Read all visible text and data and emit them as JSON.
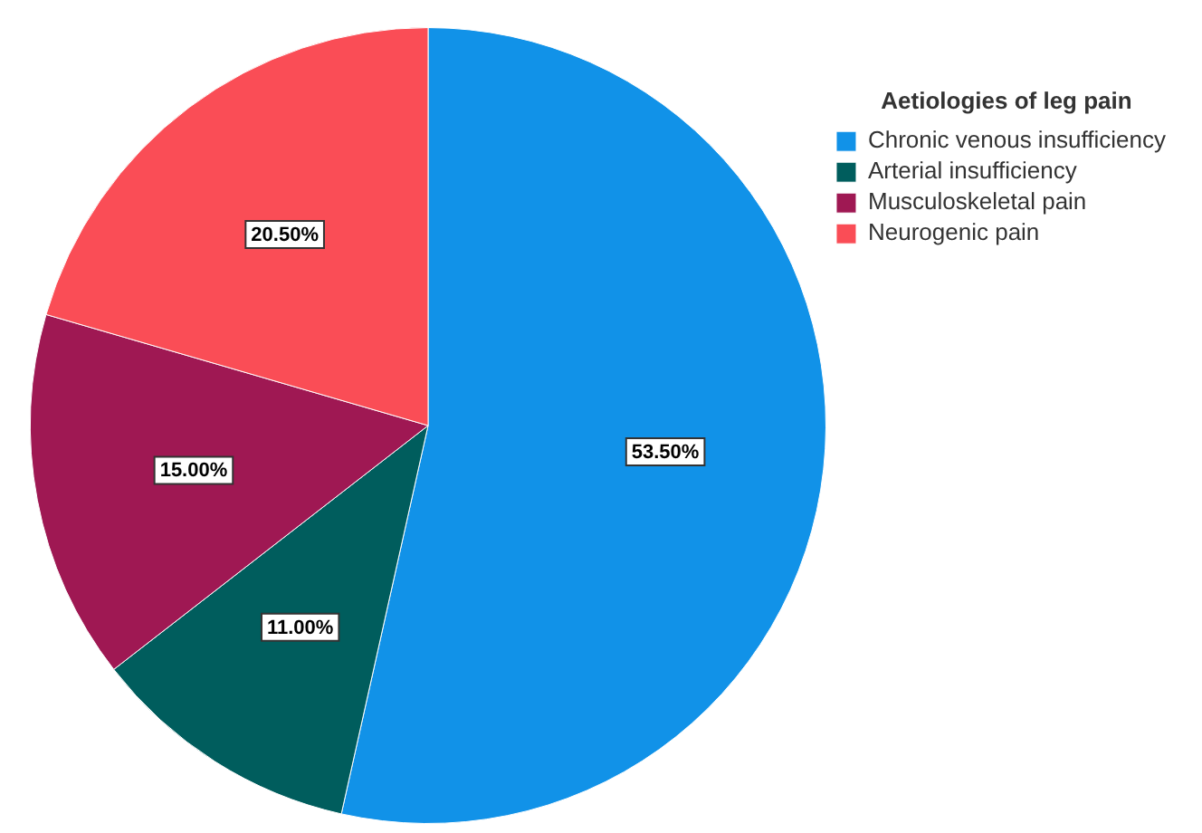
{
  "chart_data": {
    "type": "pie",
    "legend_title": "Aetiologies of leg pain",
    "categories": [
      "Chronic venous insufficiency",
      "Arterial insufficiency",
      "Musculoskeletal pain",
      "Neurogenic pain"
    ],
    "values": [
      53.5,
      11.0,
      15.0,
      20.5
    ],
    "colors": [
      "#1192e8",
      "#005d5d",
      "#9f1853",
      "#fa4d56"
    ],
    "value_labels": [
      "53.50%",
      "11.00%",
      "15.00%",
      "20.50%"
    ],
    "legend": "top right"
  }
}
